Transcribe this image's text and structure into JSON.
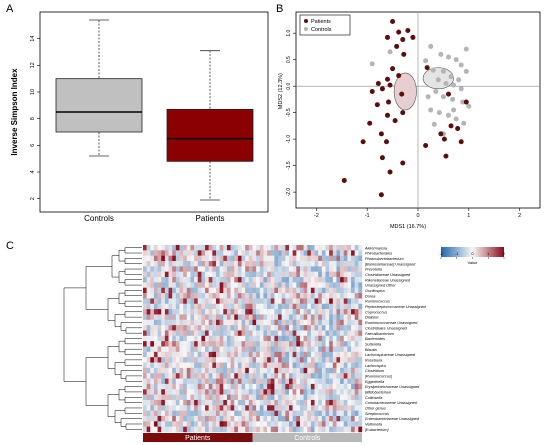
{
  "panels": {
    "a": "A",
    "b": "B",
    "c": "C"
  },
  "chart_data": [
    {
      "type": "box",
      "panel": "A",
      "ylabel": "Inverse Simpson Index",
      "ylim": [
        1,
        16
      ],
      "yticks": [
        2,
        4,
        6,
        8,
        10,
        12,
        14
      ],
      "categories": [
        "Controls",
        "Patients"
      ],
      "boxes": [
        {
          "name": "Controls",
          "color": "#c0c0c0",
          "min": 5.2,
          "q1": 7.0,
          "median": 8.5,
          "q3": 11.0,
          "max": 15.4
        },
        {
          "name": "Patients",
          "color": "#8b0000",
          "min": 1.9,
          "q1": 4.8,
          "median": 6.5,
          "q3": 8.7,
          "max": 13.1
        }
      ]
    },
    {
      "type": "scatter",
      "panel": "B",
      "xlabel": "MDS1 (16.7%)",
      "ylabel": "MDS2 (12.3%)",
      "xlim": [
        -2.4,
        2.4
      ],
      "ylim": [
        -2.3,
        1.4
      ],
      "xticks": [
        -2,
        -1,
        0,
        1,
        2
      ],
      "yticks": [
        -2.0,
        -1.5,
        -1.0,
        -0.5,
        0.0,
        0.5,
        1.0
      ],
      "legend": {
        "position": "top-left"
      },
      "series": [
        {
          "name": "Patients",
          "color": "#5a0f0f",
          "points": [
            [
              -0.5,
              1.22
            ],
            [
              -0.38,
              1.02
            ],
            [
              -0.2,
              1.05
            ],
            [
              -0.6,
              0.92
            ],
            [
              -0.3,
              0.88
            ],
            [
              -0.1,
              0.92
            ],
            [
              -0.42,
              0.75
            ],
            [
              -0.28,
              0.6
            ],
            [
              -0.5,
              0.33
            ],
            [
              -0.38,
              0.2
            ],
            [
              -0.6,
              0.13
            ],
            [
              -0.78,
              0.05
            ],
            [
              -0.55,
              0.02
            ],
            [
              -0.32,
              -0.15
            ],
            [
              -0.7,
              -0.05
            ],
            [
              -0.9,
              -0.1
            ],
            [
              -0.58,
              -0.3
            ],
            [
              -0.8,
              -0.35
            ],
            [
              -0.6,
              -0.55
            ],
            [
              -0.3,
              -0.5
            ],
            [
              -0.45,
              -0.65
            ],
            [
              -0.95,
              -0.7
            ],
            [
              -0.72,
              -0.9
            ],
            [
              -1.08,
              -1.05
            ],
            [
              -0.62,
              -1.05
            ],
            [
              -0.7,
              -1.35
            ],
            [
              -0.3,
              -1.45
            ],
            [
              -1.45,
              -1.78
            ],
            [
              -0.55,
              -1.62
            ],
            [
              -0.72,
              -2.05
            ],
            [
              0.18,
              0.35
            ],
            [
              0.45,
              -0.9
            ],
            [
              0.52,
              -1.0
            ],
            [
              0.65,
              -0.75
            ],
            [
              0.78,
              -0.8
            ],
            [
              0.85,
              -1.05
            ],
            [
              0.55,
              -1.32
            ],
            [
              0.15,
              -1.12
            ],
            [
              0.95,
              -0.3
            ],
            [
              0.6,
              -0.15
            ]
          ]
        },
        {
          "name": "Controls",
          "color": "#b4b4b4",
          "points": [
            [
              -0.9,
              0.42
            ],
            [
              -0.55,
              0.65
            ],
            [
              0.25,
              0.75
            ],
            [
              0.45,
              0.6
            ],
            [
              0.6,
              0.55
            ],
            [
              0.75,
              0.5
            ],
            [
              0.85,
              0.4
            ],
            [
              0.95,
              0.28
            ],
            [
              0.3,
              0.3
            ],
            [
              0.5,
              0.28
            ],
            [
              0.65,
              0.18
            ],
            [
              0.8,
              0.12
            ],
            [
              0.4,
              0.12
            ],
            [
              0.55,
              0.05
            ],
            [
              0.7,
              0.02
            ],
            [
              0.85,
              -0.05
            ],
            [
              0.35,
              -0.1
            ],
            [
              0.5,
              -0.2
            ],
            [
              0.68,
              -0.25
            ],
            [
              0.88,
              -0.3
            ],
            [
              1.0,
              -0.38
            ],
            [
              0.25,
              -0.45
            ],
            [
              0.42,
              -0.5
            ],
            [
              0.6,
              -0.55
            ],
            [
              0.75,
              -0.62
            ],
            [
              0.9,
              -0.7
            ],
            [
              0.32,
              -0.72
            ],
            [
              0.5,
              -0.9
            ],
            [
              0.7,
              -0.45
            ],
            [
              0.15,
              0.48
            ],
            [
              0.95,
              0.7
            ],
            [
              0.2,
              -0.2
            ]
          ]
        }
      ],
      "ellipses": [
        {
          "series": "Patients",
          "cx": -0.25,
          "cy": -0.1,
          "rx": 0.22,
          "ry": 0.35,
          "fill": "#e8cfcf"
        },
        {
          "series": "Controls",
          "cx": 0.4,
          "cy": 0.15,
          "rx": 0.3,
          "ry": 0.2,
          "fill": "#e4e4e4"
        }
      ]
    },
    {
      "type": "heatmap",
      "panel": "C",
      "rows": [
        "Akkermansia",
        "Phirobacteriales",
        "Phascolarctobacterium",
        "[Barnesiellaceae] Unassigned",
        "Prevotella",
        "Clostridiaceae Unassigned",
        "Rikenellaceae Unassigned",
        "Unassigned Other",
        "Oscillospira",
        "Dorea",
        "Ruminococcus",
        "Peptostreptococcaceae Unassigned",
        "Coprococcus",
        "Dialister",
        "Ruminococcaceae Unassigned",
        "Clostridiales Unassigned",
        "Faecalibacterium",
        "Bacteroides",
        "Sutterella",
        "Blautia",
        "Lachnospiraceae Unassigned",
        "Roseburia",
        "Lachnospira",
        "Clostridium",
        "[Ruminococcus]",
        "Eggerthella",
        "Erysipelotrichaceae Unassigned",
        "Bifidobacterium",
        "Collinsella",
        "Coriobacteriaceae Unassigned",
        "Other genus",
        "Streptococcus",
        "Enterobacteriaceae Unassigned",
        "Veillonella",
        "[Eubacterium]"
      ],
      "groups": [
        {
          "name": "Patients",
          "color": "#7b0c0c",
          "count": 30
        },
        {
          "name": "Controls",
          "color": "#b8b8b8",
          "count": 30
        }
      ],
      "colorscale": {
        "min": -2,
        "max": 2,
        "low": "#2166ac",
        "mid": "#f7f7f7",
        "high": "#8b0a1a"
      },
      "legend_title": "Value",
      "legend_ticks": [
        -2,
        -1,
        0,
        1,
        2
      ]
    }
  ]
}
